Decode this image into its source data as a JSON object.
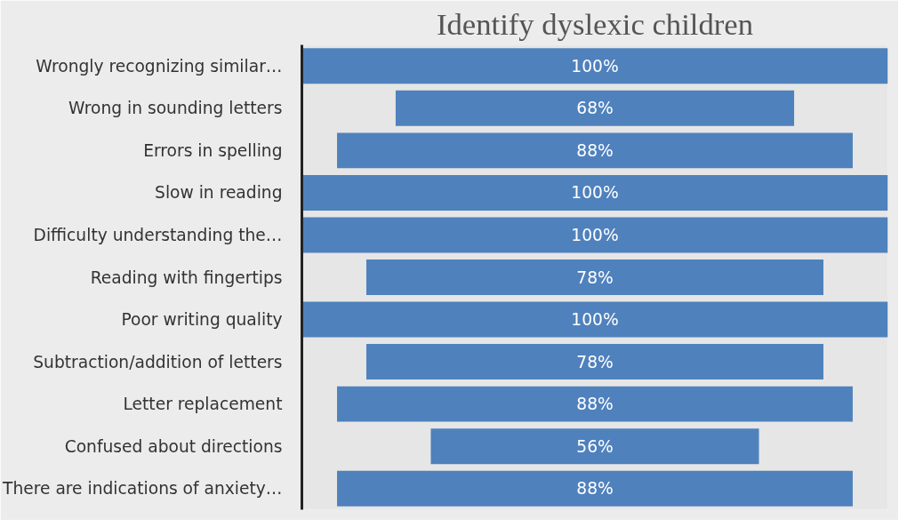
{
  "chart_data": {
    "type": "other",
    "title": "Identify dyslexic children",
    "categories": [
      "Wrongly recognizing similar…",
      "Wrong in sounding letters",
      "Errors in spelling",
      "Slow in reading",
      "Difficulty understanding the…",
      "Reading with fingertips",
      "Poor writing quality",
      "Subtraction/addition of letters",
      "Letter replacement",
      "Confused about directions",
      "There are indications of anxiety…"
    ],
    "values": [
      100,
      68,
      88,
      100,
      100,
      78,
      100,
      78,
      88,
      56,
      88
    ],
    "value_labels": [
      "100%",
      "68%",
      "88%",
      "100%",
      "100%",
      "78%",
      "100%",
      "78%",
      "88%",
      "56%",
      "88%"
    ],
    "color": "#4f81bd"
  }
}
